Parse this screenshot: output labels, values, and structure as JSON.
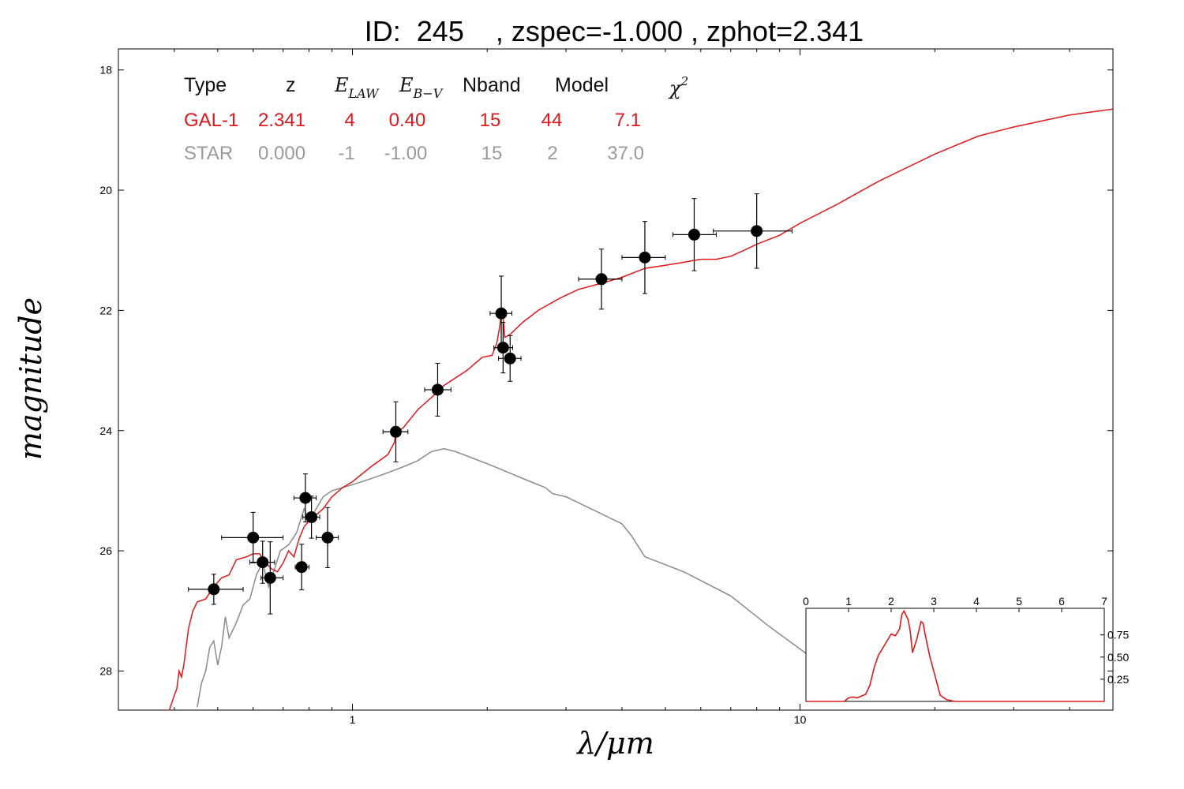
{
  "title": "ID:  245    , zspec=-1.000 , zphot=2.341",
  "colors": {
    "galaxy": "#e0181c",
    "star": "#8a8a8a",
    "points": "#000000"
  },
  "chart_data": [
    {
      "type": "scatter",
      "xlabel": "λ/μm",
      "ylabel": "magnitude",
      "x_scale": "log",
      "y_inverted": true,
      "xlim": [
        0.3,
        50
      ],
      "ylim": [
        28.65,
        17.65
      ],
      "x_tick_labels": [
        "1",
        "10"
      ],
      "y_ticks": [
        18,
        20,
        22,
        24,
        26,
        28
      ],
      "y_tick_labels": [
        "18",
        "20",
        "22",
        "24",
        "26",
        "28"
      ],
      "table": {
        "headers": [
          "Type",
          "z",
          "E_LAW",
          "E_B-V",
          "Nband",
          "Model",
          "χ²"
        ],
        "rows": [
          {
            "type": "GAL-1",
            "z": "2.341",
            "law": "4",
            "ebv": "0.40",
            "nband": "15",
            "model": "44",
            "chi2": "7.1"
          },
          {
            "type": "STAR",
            "z": "0.000",
            "law": "-1",
            "ebv": "-1.00",
            "nband": "15",
            "model": "2",
            "chi2": "37.0"
          }
        ]
      },
      "points": [
        {
          "x": 0.49,
          "y": 26.64,
          "xerr": [
            0.43,
            0.57
          ],
          "yerr": 0.25
        },
        {
          "x": 0.6,
          "y": 25.78,
          "xerr": [
            0.51,
            0.7
          ],
          "yerr": 0.42
        },
        {
          "x": 0.63,
          "y": 26.19,
          "xerr": [
            0.59,
            0.67
          ],
          "yerr": 0.35
        },
        {
          "x": 0.655,
          "y": 26.45,
          "xerr": [
            0.625,
            0.7
          ],
          "yerr": 0.6
        },
        {
          "x": 0.77,
          "y": 26.27,
          "xerr": [
            0.745,
            0.8
          ],
          "yerr": 0.38
        },
        {
          "x": 0.785,
          "y": 25.12,
          "xerr": [
            0.74,
            0.83
          ],
          "yerr": 0.4
        },
        {
          "x": 0.81,
          "y": 25.44,
          "xerr": [
            0.775,
            0.845
          ],
          "yerr": 0.35
        },
        {
          "x": 0.88,
          "y": 25.78,
          "xerr": [
            0.83,
            0.93
          ],
          "yerr": 0.5
        },
        {
          "x": 1.25,
          "y": 24.02,
          "xerr": [
            1.17,
            1.33
          ],
          "yerr": 0.5
        },
        {
          "x": 1.55,
          "y": 23.32,
          "xerr": [
            1.45,
            1.66
          ],
          "yerr": 0.44
        },
        {
          "x": 2.15,
          "y": 22.05,
          "xerr": [
            2.03,
            2.27
          ],
          "yerr": 0.62
        },
        {
          "x": 2.17,
          "y": 22.62,
          "xerr": [
            2.07,
            2.28
          ],
          "yerr": 0.42
        },
        {
          "x": 2.25,
          "y": 22.8,
          "xerr": [
            2.12,
            2.38
          ],
          "yerr": 0.38
        },
        {
          "x": 3.6,
          "y": 21.48,
          "xerr": [
            3.2,
            4.0
          ],
          "yerr": 0.5
        },
        {
          "x": 4.5,
          "y": 21.12,
          "xerr": [
            4.0,
            5.0
          ],
          "yerr": 0.6
        },
        {
          "x": 5.8,
          "y": 20.74,
          "xerr": [
            5.2,
            6.5
          ],
          "yerr": 0.6
        },
        {
          "x": 8.0,
          "y": 20.68,
          "xerr": [
            6.4,
            9.6
          ],
          "yerr": 0.62
        }
      ],
      "series": [
        {
          "name": "GAL-1",
          "x": [
            0.39,
            0.4,
            0.405,
            0.41,
            0.415,
            0.42,
            0.43,
            0.44,
            0.45,
            0.47,
            0.49,
            0.51,
            0.53,
            0.55,
            0.58,
            0.6,
            0.62,
            0.64,
            0.66,
            0.68,
            0.7,
            0.72,
            0.74,
            0.76,
            0.78,
            0.8,
            0.83,
            0.86,
            0.9,
            0.95,
            1.0,
            1.1,
            1.2,
            1.24,
            1.25,
            1.3,
            1.4,
            1.5,
            1.6,
            1.8,
            1.95,
            2.05,
            2.1,
            2.13,
            2.16,
            2.19,
            2.25,
            2.4,
            2.6,
            2.9,
            3.2,
            3.6,
            4.0,
            4.5,
            5.0,
            5.5,
            6.0,
            6.5,
            7.0,
            7.5,
            8.0,
            9.0,
            10,
            12,
            15,
            20,
            25,
            30,
            40,
            50
          ],
          "y": [
            28.65,
            28.4,
            28.3,
            28.0,
            28.1,
            27.9,
            27.3,
            27.0,
            26.85,
            26.8,
            26.6,
            26.45,
            26.4,
            26.15,
            26.1,
            26.05,
            26.05,
            26.2,
            26.3,
            26.35,
            26.2,
            26.0,
            26.1,
            25.8,
            25.6,
            25.5,
            25.4,
            25.3,
            25.1,
            24.95,
            24.85,
            24.6,
            24.4,
            24.2,
            24.05,
            23.95,
            23.65,
            23.45,
            23.25,
            23.0,
            22.78,
            22.75,
            22.55,
            22.3,
            21.95,
            22.45,
            22.4,
            22.2,
            22.0,
            21.8,
            21.65,
            21.55,
            21.45,
            21.3,
            21.25,
            21.2,
            21.15,
            21.15,
            21.1,
            21.0,
            20.9,
            20.75,
            20.55,
            20.25,
            19.85,
            19.4,
            19.1,
            18.95,
            18.75,
            18.65
          ]
        },
        {
          "name": "STAR",
          "x": [
            0.45,
            0.46,
            0.47,
            0.48,
            0.49,
            0.5,
            0.51,
            0.52,
            0.53,
            0.55,
            0.57,
            0.59,
            0.61,
            0.63,
            0.65,
            0.67,
            0.69,
            0.72,
            0.75,
            0.78,
            0.8,
            0.83,
            0.86,
            0.9,
            0.95,
            1.0,
            1.1,
            1.2,
            1.3,
            1.4,
            1.5,
            1.6,
            1.7,
            2.0,
            2.5,
            2.7,
            2.8,
            3.0,
            4.0,
            4.2,
            4.5,
            5.5,
            7.0,
            8.5,
            10.5
          ],
          "y": [
            28.6,
            28.2,
            28.0,
            27.6,
            27.5,
            27.9,
            27.6,
            27.1,
            27.45,
            27.2,
            26.9,
            26.8,
            26.4,
            26.2,
            26.6,
            26.3,
            26.0,
            25.9,
            25.7,
            25.3,
            25.5,
            25.3,
            25.1,
            25.0,
            24.95,
            24.9,
            24.8,
            24.7,
            24.6,
            24.5,
            24.35,
            24.3,
            24.35,
            24.55,
            24.85,
            24.95,
            25.05,
            25.1,
            25.55,
            25.75,
            26.1,
            26.35,
            26.75,
            27.25,
            27.75
          ]
        }
      ]
    },
    {
      "type": "line",
      "name": "inset-pdz",
      "xlim": [
        0,
        7
      ],
      "ylim": [
        0,
        1.05
      ],
      "x_ticks": [
        0,
        1,
        2,
        3,
        4,
        5,
        6,
        7
      ],
      "x_tick_labels": [
        "0",
        "1",
        "2",
        "3",
        "4",
        "5",
        "6",
        "7"
      ],
      "y_ticks": [
        0.25,
        0.5,
        0.75
      ],
      "y_tick_labels": [
        "0.25",
        "0.50",
        "0.75"
      ],
      "series": [
        {
          "name": "",
          "x": [
            0,
            0.9,
            1.0,
            1.1,
            1.2,
            1.4,
            1.5,
            1.6,
            1.7,
            1.8,
            1.9,
            2.0,
            2.1,
            2.2,
            2.25,
            2.3,
            2.4,
            2.45,
            2.5,
            2.6,
            2.7,
            2.75,
            2.8,
            2.9,
            3.0,
            3.1,
            3.15,
            3.3,
            3.5,
            7
          ],
          "y": [
            0.0,
            0.0,
            0.04,
            0.05,
            0.04,
            0.08,
            0.18,
            0.38,
            0.52,
            0.6,
            0.68,
            0.76,
            0.74,
            0.82,
            0.98,
            1.02,
            0.92,
            0.78,
            0.55,
            0.7,
            0.9,
            0.88,
            0.75,
            0.52,
            0.34,
            0.16,
            0.07,
            0.02,
            0.0,
            0.0
          ]
        }
      ]
    }
  ]
}
